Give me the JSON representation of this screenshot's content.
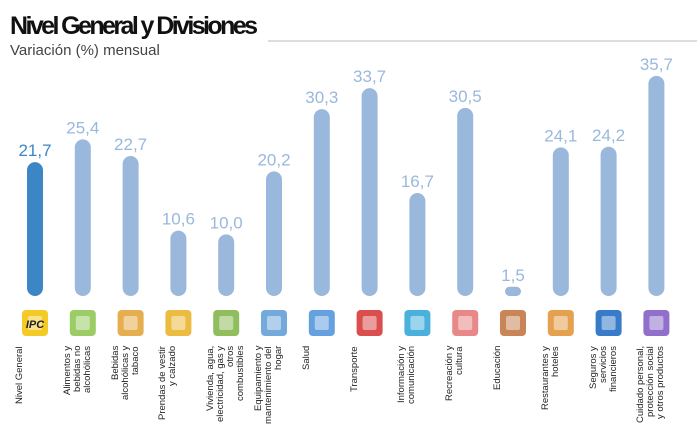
{
  "chart_data": {
    "type": "bar",
    "title": "Nivel General y Divisiones",
    "subtitle": "Variación (%) mensual",
    "badge": "IPC",
    "categories": [
      "Nivel General",
      "Alimentos y bebidas no alcohólicas",
      "Bebidas alcohólicas y tabaco",
      "Prendas de vestir y calzado",
      "Vivienda, agua, electricidad, gas y otros combustibles",
      "Equipamiento y mantenimiento del hogar",
      "Salud",
      "Transporte",
      "Información y comunicación",
      "Recreación y cultura",
      "Educación",
      "Restaurantes y hoteles",
      "Seguros y servicios financieros",
      "Cuidado personal, protección social y otros productos"
    ],
    "values": [
      21.7,
      25.4,
      22.7,
      10.6,
      10.0,
      20.2,
      30.3,
      33.7,
      16.7,
      30.5,
      1.5,
      24.1,
      24.2,
      35.7
    ],
    "value_labels": [
      "21,7",
      "25,4",
      "22,7",
      "10,6",
      "10,0",
      "20,2",
      "30,3",
      "33,7",
      "16,7",
      "30,5",
      "1,5",
      "24,1",
      "24,2",
      "35,7"
    ],
    "colors": [
      "#3d86c6",
      "#9ab8dc",
      "#9ab8dc",
      "#9ab8dc",
      "#9ab8dc",
      "#9ab8dc",
      "#9ab8dc",
      "#9ab8dc",
      "#9ab8dc",
      "#9ab8dc",
      "#9ab8dc",
      "#9ab8dc",
      "#9ab8dc",
      "#9ab8dc"
    ],
    "ylim": [
      0,
      36
    ]
  }
}
